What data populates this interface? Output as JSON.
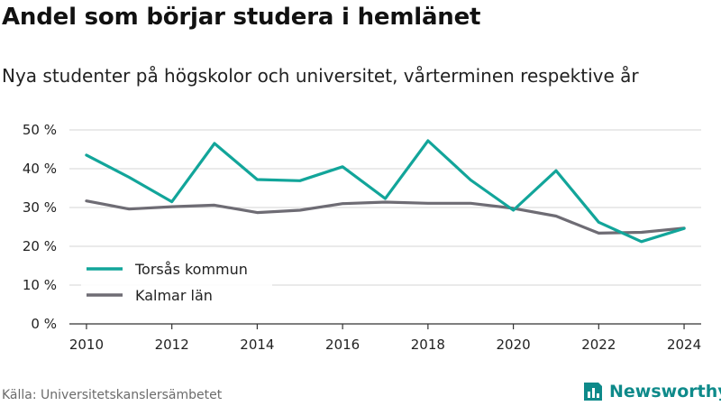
{
  "title": "Andel som börjar studera i hemlänet",
  "subtitle": "Nya studenter på högskolor och universitet, vårterminen respektive år",
  "source": "Källa: Universitetskanslersämbetet",
  "brand": "Newsworthy",
  "colors": {
    "series1": "#12a59a",
    "series2": "#6e6c74",
    "grid": "#d6d6d6",
    "axis": "#333333",
    "brand": "#0e8a8a"
  },
  "chart_data": {
    "type": "line",
    "x": [
      2010,
      2011,
      2012,
      2013,
      2014,
      2015,
      2016,
      2017,
      2018,
      2019,
      2020,
      2021,
      2022,
      2023,
      2024
    ],
    "series": [
      {
        "name": "Torsås kommun",
        "values": [
          43.5,
          37.8,
          31.5,
          46.5,
          37.2,
          36.9,
          40.5,
          32.3,
          47.2,
          37.1,
          29.3,
          39.5,
          26.2,
          21.2,
          24.6
        ]
      },
      {
        "name": "Kalmar län",
        "values": [
          31.7,
          29.6,
          30.2,
          30.6,
          28.7,
          29.3,
          31.0,
          31.4,
          31.1,
          31.1,
          29.8,
          27.8,
          23.4,
          23.6,
          24.7
        ]
      }
    ],
    "yticks": [
      0,
      10,
      20,
      30,
      40,
      50
    ],
    "ytick_labels": [
      "0 %",
      "10 %",
      "20 %",
      "30 %",
      "40 %",
      "50 %"
    ],
    "xticks": [
      2010,
      2012,
      2014,
      2016,
      2018,
      2020,
      2022,
      2024
    ],
    "xtick_labels": [
      "2010",
      "2012",
      "2014",
      "2016",
      "2018",
      "2020",
      "2022",
      "2024"
    ],
    "ylim": [
      0,
      50
    ],
    "xlim": [
      2009.6,
      2024.4
    ],
    "grid": true,
    "legend": "bottom-left"
  }
}
